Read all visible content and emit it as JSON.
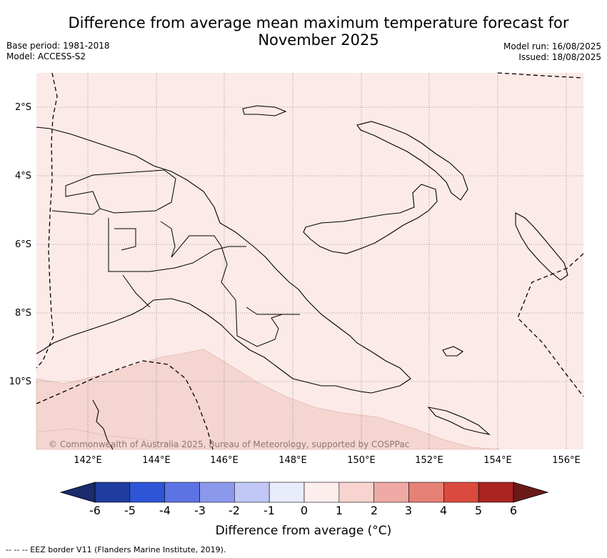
{
  "title": "Difference from average mean maximum temperature forecast for November 2025",
  "meta": {
    "base_period": "Base period: 1981-2018",
    "model": "Model: ACCESS-S2",
    "model_run": "Model run: 16/08/2025",
    "issued": "Issued: 18/08/2025"
  },
  "map": {
    "lat_labels": [
      "2°S",
      "4°S",
      "6°S",
      "8°S",
      "10°S"
    ],
    "lon_labels": [
      "142°E",
      "144°E",
      "146°E",
      "148°E",
      "150°E",
      "152°E",
      "154°E",
      "156°E"
    ],
    "background_fill": "#fbeae8",
    "warmer_fill": "#f5d5d0",
    "copyright": "© Commonwealth of Australia 2025, Bureau of Meteorology, supported by COSPPac"
  },
  "colorbar": {
    "ticks": [
      "-6",
      "-5",
      "-4",
      "-3",
      "-2",
      "-1",
      "0",
      "1",
      "2",
      "3",
      "4",
      "5",
      "6"
    ],
    "colors": [
      "#1f3d9e",
      "#2e55d6",
      "#5c74e3",
      "#8b99ec",
      "#c2c8f5",
      "#e9ecfb",
      "#fdeeee",
      "#f7d4d0",
      "#efaaa5",
      "#e58177",
      "#db4a3e",
      "#aa2421"
    ],
    "under_color": "#1a2b6e",
    "over_color": "#6b1a17",
    "label": "Difference from average (°C)"
  },
  "footer": {
    "eez": "--  --  -- EEZ border V11 (Flanders Marine Institute, 2019)."
  }
}
